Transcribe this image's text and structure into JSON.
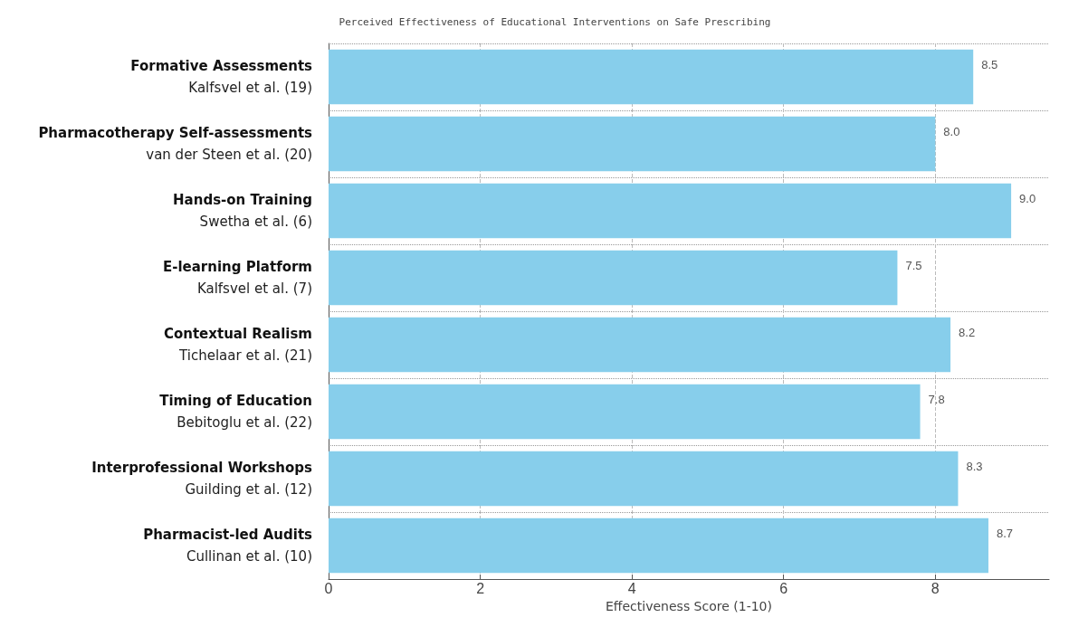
{
  "chart_data": {
    "type": "bar",
    "orientation": "horizontal",
    "title": "Perceived Effectiveness of Educational Interventions on Safe Prescribing",
    "xlabel": "Effectiveness Score (1-10)",
    "categories": [
      "Formative Assessments\nKalfsvel et al. (19)",
      "Pharmacotherapy Self-assessments\nvan der Steen et al. (20)",
      "Hands-on Training\nSwetha et al. (6)",
      "E-learning Platform\nKalfsvel et al. (7)",
      "Contextual Realism\nTichelaar et al. (21)",
      "Timing of Education\nBebitoglu et al. (22)",
      "Interprofessional Workshops\nGuilding et al. (12)",
      "Pharmacist-led Audits\nCullinan et al. (10)"
    ],
    "values": [
      8.5,
      8.0,
      9.0,
      7.5,
      8.2,
      7.8,
      8.3,
      8.7
    ],
    "value_labels": [
      "8.5",
      "8.0",
      "9.0",
      "7.5",
      "8.2",
      "7.8",
      "8.3",
      "8.7"
    ],
    "color": "#87ceeb",
    "xlim": [
      0,
      9.5
    ],
    "xticks": [
      0,
      2,
      4,
      6,
      8
    ],
    "grid": true
  }
}
